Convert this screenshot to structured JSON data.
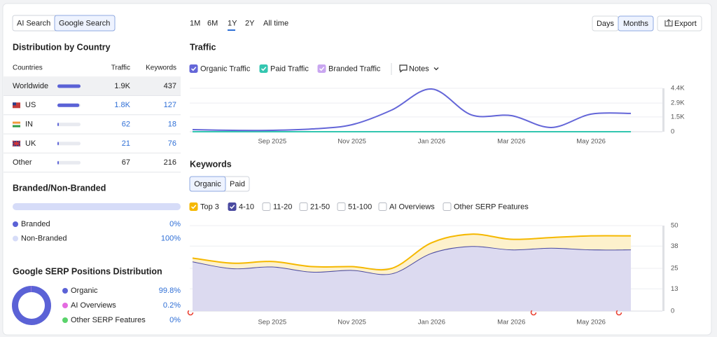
{
  "tabs": {
    "items": [
      "AI Search",
      "Google Search"
    ],
    "active": 1
  },
  "country": {
    "title": "Distribution by Country",
    "columns": [
      "Countries",
      "Traffic",
      "Keywords"
    ],
    "rows": [
      {
        "country": "Worldwide",
        "traffic": {
          "value": 1900,
          "label": "1.9K"
        },
        "keywords": 437
      },
      {
        "country": "US",
        "traffic": {
          "value": 1800,
          "label": "1.8K"
        },
        "keywords": 127
      },
      {
        "country": "IN",
        "traffic": 62,
        "keywords": 18
      },
      {
        "country": "UK",
        "traffic": 21,
        "keywords": 76
      },
      {
        "country": "Other",
        "traffic": 67,
        "keywords": 216
      }
    ]
  },
  "branded": {
    "title": "Branded/Non-Branded",
    "items": [
      {
        "name": "Branded",
        "value": 0,
        "label": "0%",
        "color": "#5b62d6"
      },
      {
        "name": "Non-Branded",
        "value": 100,
        "label": "100%",
        "color": "#d6dcf8"
      }
    ]
  },
  "serp": {
    "title": "Google SERP Positions Distribution",
    "items": [
      {
        "name": "Organic",
        "value": 99.8,
        "label": "99.8%",
        "color": "#5b62d6"
      },
      {
        "name": "AI Overviews",
        "value": 0.2,
        "label": "0.2%",
        "color": "#e46be0"
      },
      {
        "name": "Other SERP Features",
        "value": 0,
        "label": "0%",
        "color": "#5ad36b"
      }
    ]
  },
  "periods": {
    "items": [
      "1M",
      "6M",
      "1Y",
      "2Y",
      "All time"
    ],
    "active": 2
  },
  "granularity": {
    "items": [
      "Days",
      "Months"
    ],
    "active": 1
  },
  "export": "Export",
  "traffic_chart": {
    "type": "line",
    "title": "Traffic",
    "notes": "Notes",
    "categories": [
      null,
      null,
      "Sep 2025",
      null,
      "Nov 2025",
      null,
      "Jan 2026",
      null,
      "Mar 2026",
      null,
      "May 2026",
      null
    ],
    "series": [
      {
        "name": "Organic Traffic",
        "color": "#6466d8",
        "checked": true,
        "values": [
          210,
          140,
          140,
          280,
          710,
          2200,
          4330,
          1700,
          1630,
          430,
          1780,
          1850
        ]
      },
      {
        "name": "Paid Traffic",
        "color": "#33c6b0",
        "checked": true,
        "values": [
          0,
          0,
          0,
          0,
          0,
          0,
          0,
          0,
          0,
          0,
          0,
          0
        ]
      },
      {
        "name": "Branded Traffic",
        "color": "#c9a6f0",
        "checked": true,
        "values": [
          0,
          0,
          0,
          0,
          0,
          0,
          0,
          0,
          0,
          0,
          0,
          0
        ]
      }
    ],
    "ylim": [
      0,
      4400
    ],
    "yticks": [
      0,
      {
        "value": 1500,
        "label": "1.5K"
      },
      {
        "value": 2900,
        "label": "2.9K"
      },
      {
        "value": 4400,
        "label": "4.4K"
      }
    ],
    "grid": true
  },
  "keywords_chart": {
    "type": "area",
    "stacked": true,
    "title": "Keywords",
    "tabs": {
      "items": [
        "Organic",
        "Paid"
      ],
      "active": 0
    },
    "categories": [
      null,
      null,
      "Sep 2025",
      null,
      "Nov 2025",
      null,
      "Jan 2026",
      null,
      "Mar 2026",
      null,
      "May 2026",
      null
    ],
    "filters": [
      {
        "name": "Top 3",
        "checked": true,
        "color": "#f5b800",
        "values": [
          2,
          3,
          3,
          3,
          2,
          3,
          6,
          7,
          6,
          6,
          8,
          8
        ]
      },
      {
        "name": "4-10",
        "checked": true,
        "color": "#4a4aa0",
        "values": [
          29,
          25,
          26,
          23,
          24,
          22,
          34,
          38,
          36,
          37,
          36,
          36
        ]
      },
      {
        "name": "11-20",
        "checked": false
      },
      {
        "name": "21-50",
        "checked": false
      },
      {
        "name": "51-100",
        "checked": false
      },
      {
        "name": "AI Overviews",
        "checked": false
      },
      {
        "name": "Other SERP Features",
        "checked": false
      }
    ],
    "ylim": [
      0,
      50
    ],
    "yticks": [
      0,
      13,
      25,
      38,
      50
    ],
    "grid": true
  }
}
